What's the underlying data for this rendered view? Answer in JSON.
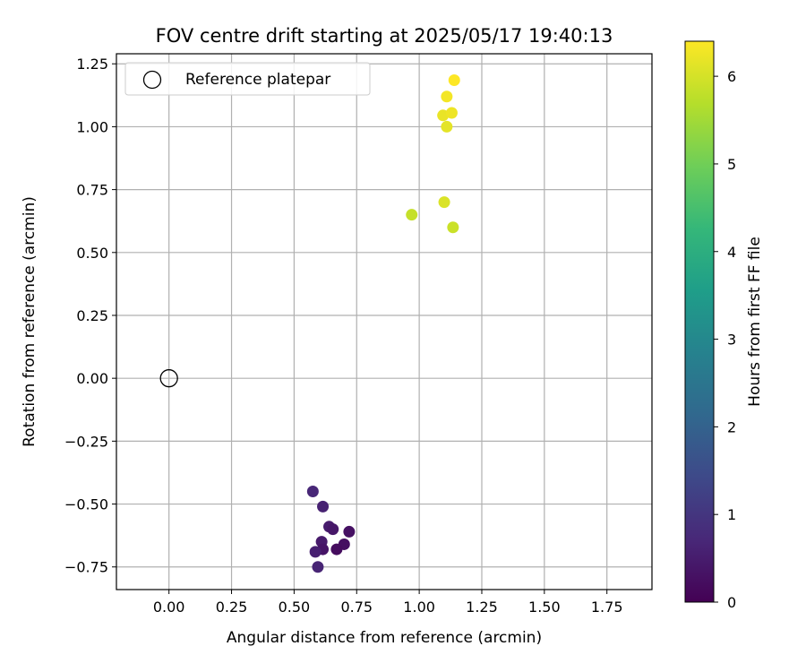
{
  "chart_data": {
    "type": "scatter",
    "title": "FOV centre drift starting at 2025/05/17 19:40:13",
    "xlabel": "Angular distance from reference (arcmin)",
    "ylabel": "Rotation from reference (arcmin)",
    "xlim": [
      -0.21,
      1.93
    ],
    "ylim": [
      -0.84,
      1.29
    ],
    "xticks": [
      0.0,
      0.25,
      0.5,
      0.75,
      1.0,
      1.25,
      1.5,
      1.75
    ],
    "xtick_labels": [
      "0.00",
      "0.25",
      "0.50",
      "0.75",
      "1.00",
      "1.25",
      "1.50",
      "1.75"
    ],
    "yticks": [
      -0.75,
      -0.5,
      -0.25,
      0.0,
      0.25,
      0.5,
      0.75,
      1.0,
      1.25
    ],
    "ytick_labels": [
      "−0.75",
      "−0.50",
      "−0.25",
      "0.00",
      "0.25",
      "0.50",
      "0.75",
      "1.00",
      "1.25"
    ],
    "grid": true,
    "legend": {
      "position": "top-left",
      "entries": [
        "Reference platepar"
      ]
    },
    "reference_point": {
      "x": 0.0,
      "y": 0.0,
      "label": "Reference platepar"
    },
    "points": [
      {
        "x": 0.575,
        "y": -0.45,
        "t": 0.7
      },
      {
        "x": 0.615,
        "y": -0.51,
        "t": 0.6
      },
      {
        "x": 0.64,
        "y": -0.59,
        "t": 0.5
      },
      {
        "x": 0.655,
        "y": -0.6,
        "t": 0.4
      },
      {
        "x": 0.72,
        "y": -0.61,
        "t": 0.3
      },
      {
        "x": 0.61,
        "y": -0.65,
        "t": 0.45
      },
      {
        "x": 0.7,
        "y": -0.66,
        "t": 0.25
      },
      {
        "x": 0.67,
        "y": -0.68,
        "t": 0.2
      },
      {
        "x": 0.615,
        "y": -0.68,
        "t": 0.35
      },
      {
        "x": 0.585,
        "y": -0.69,
        "t": 0.55
      },
      {
        "x": 0.595,
        "y": -0.75,
        "t": 0.65
      },
      {
        "x": 1.14,
        "y": 1.185,
        "t": 6.4
      },
      {
        "x": 1.11,
        "y": 1.12,
        "t": 6.3
      },
      {
        "x": 1.095,
        "y": 1.045,
        "t": 6.2
      },
      {
        "x": 1.13,
        "y": 1.055,
        "t": 6.25
      },
      {
        "x": 1.11,
        "y": 1.0,
        "t": 6.15
      },
      {
        "x": 1.1,
        "y": 0.7,
        "t": 6.05
      },
      {
        "x": 0.97,
        "y": 0.65,
        "t": 5.85
      },
      {
        "x": 1.135,
        "y": 0.6,
        "t": 5.9
      }
    ],
    "colorbar": {
      "label": "Hours from first FF file",
      "range": [
        0,
        6.4
      ],
      "ticks": [
        0,
        1,
        2,
        3,
        4,
        5,
        6
      ],
      "tick_labels": [
        "0",
        "1",
        "2",
        "3",
        "4",
        "5",
        "6"
      ],
      "colormap": "viridis",
      "colormap_stops": [
        "#440154",
        "#482878",
        "#3e4989",
        "#31688e",
        "#26828e",
        "#1f9e89",
        "#35b779",
        "#6ece58",
        "#b5de2b",
        "#fde725"
      ]
    }
  }
}
